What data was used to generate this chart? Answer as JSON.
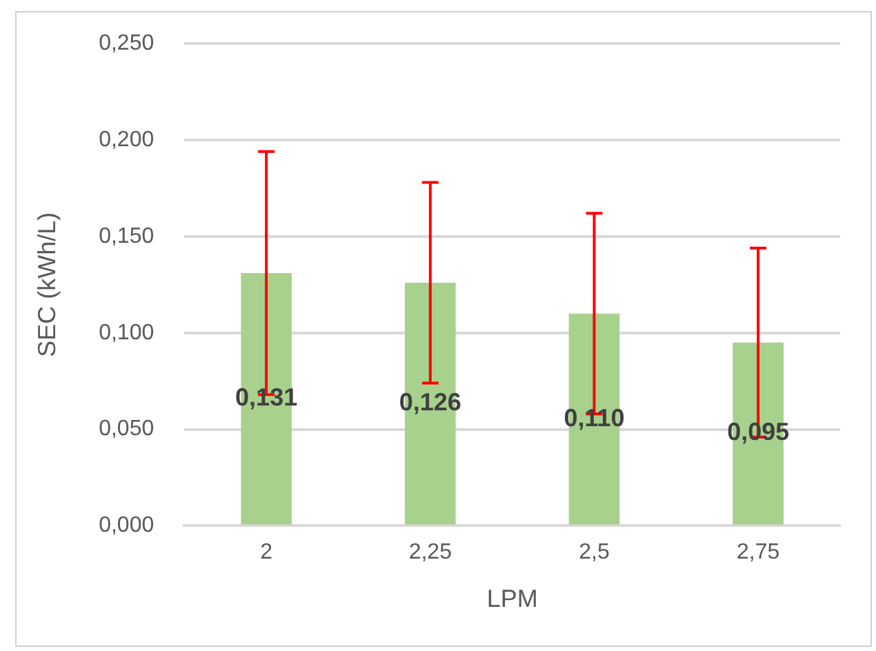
{
  "chart_data": {
    "type": "bar",
    "xlabel": "LPM",
    "ylabel": "SEC (kWh/L)",
    "categories": [
      "2",
      "2,25",
      "2,5",
      "2,75"
    ],
    "values": [
      0.131,
      0.126,
      0.11,
      0.095
    ],
    "value_labels": [
      "0,131",
      "0,126",
      "0,110",
      "0,095"
    ],
    "errors": [
      0.063,
      0.052,
      0.052,
      0.049
    ],
    "color": "#a9d18e",
    "ylim": [
      0,
      0.25
    ],
    "yticks": [
      {
        "value": 0,
        "label": "0,000"
      },
      {
        "value": 0.05,
        "label": "0,050"
      },
      {
        "value": 0.1,
        "label": "0,100"
      },
      {
        "value": 0.15,
        "label": "0,150"
      },
      {
        "value": 0.2,
        "label": "0,200"
      },
      {
        "value": 0.25,
        "label": "0,250"
      }
    ],
    "grid": "y",
    "legend": false
  }
}
